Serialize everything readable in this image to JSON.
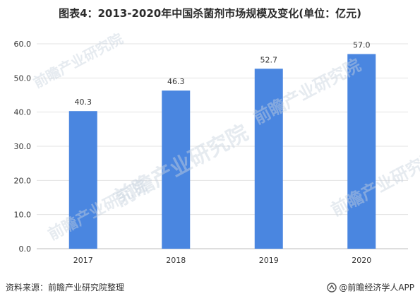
{
  "title": "图表4：2013-2020年中国杀菌剂市场规模及变化(单位：亿元)",
  "source_text": "资料来源：前瞻产业研究院整理",
  "brand_text": "@前瞻经济学人APP",
  "watermark_text": "前瞻产业研究院",
  "colors": {
    "bar": "#4a86e0",
    "grid": "#e3e3e3",
    "axis": "#bdbdbd"
  },
  "icons": {
    "brand_logo": "qianzhan-logo-icon"
  },
  "chart_data": {
    "type": "bar",
    "categories": [
      "2017",
      "2018",
      "2019",
      "2020"
    ],
    "values": [
      40.3,
      46.3,
      52.7,
      57.0
    ],
    "value_labels": [
      "40.3",
      "46.3",
      "52.7",
      "57.0"
    ],
    "title": "图表4：2013-2020年中国杀菌剂市场规模及变化(单位：亿元)",
    "xlabel": "",
    "ylabel": "",
    "ylim": [
      0,
      60
    ],
    "yticks": [
      "0.0",
      "10.0",
      "20.0",
      "30.0",
      "40.0",
      "50.0",
      "60.0"
    ],
    "grid": true,
    "legend": "none"
  }
}
